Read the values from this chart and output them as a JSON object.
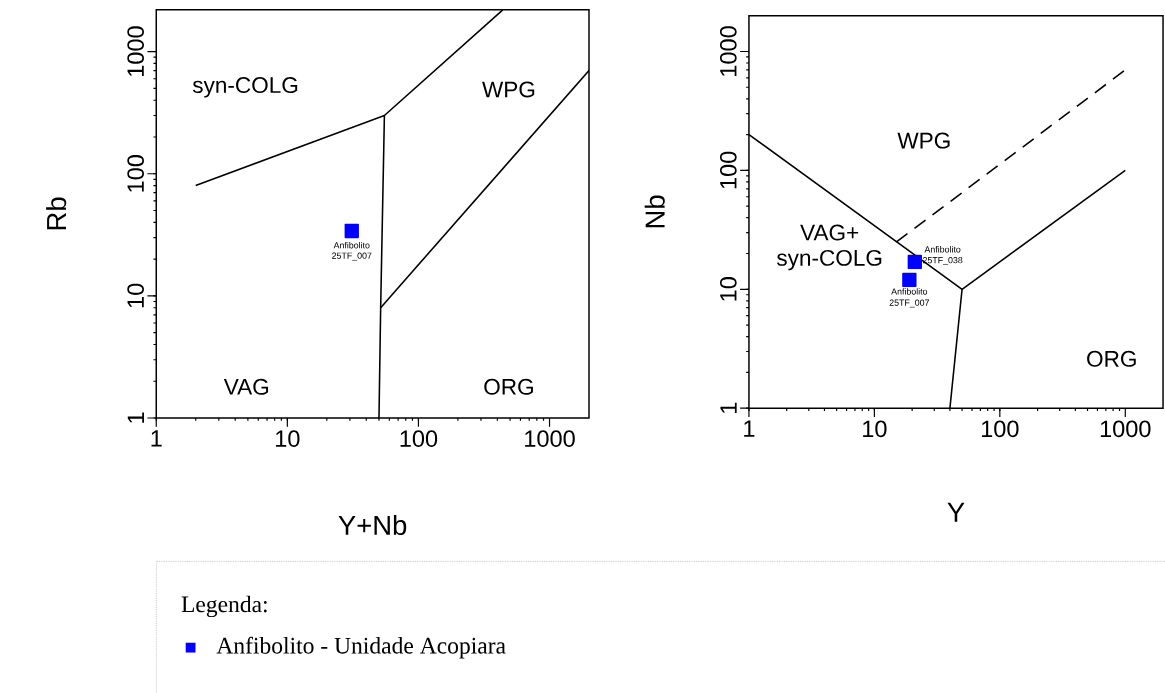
{
  "chart_data": [
    {
      "type": "scatter",
      "xlabel": "Y+Nb",
      "ylabel": "Rb",
      "log": "xy",
      "xlim": [
        1,
        2000
      ],
      "ylim": [
        1,
        2200
      ],
      "xticks": [
        1,
        10,
        100,
        1000
      ],
      "yticks": [
        1,
        10,
        100,
        1000
      ],
      "marker": "square",
      "legend": "bottom",
      "legend_title": "Legenda:",
      "series": [
        {
          "type": "line",
          "color": "#000000",
          "line_style": "solid",
          "marker": "none",
          "x": [
            2,
            55,
            440
          ],
          "values": [
            80,
            300,
            2200
          ]
        },
        {
          "type": "line",
          "color": "#000000",
          "line_style": "solid",
          "marker": "none",
          "x": [
            55,
            51.5,
            50
          ],
          "values": [
            300,
            8,
            1
          ]
        },
        {
          "type": "line",
          "color": "#000000",
          "line_style": "solid",
          "marker": "none",
          "x": [
            51.5,
            2000
          ],
          "values": [
            8,
            700
          ]
        },
        {
          "name": "Anfibolito - Unidade Acopiara",
          "color": "#0000ff",
          "x": [
            31
          ],
          "values": [
            34
          ]
        }
      ],
      "annotations": [
        "syn-COLG",
        "WPG",
        "VAG",
        "ORG",
        "Anfibolito",
        "25TF_007"
      ]
    },
    {
      "type": "scatter",
      "xlabel": "Y",
      "ylabel": "Nb",
      "log": "xy",
      "xlim": [
        1,
        2000
      ],
      "ylim": [
        1,
        2000
      ],
      "xticks": [
        1,
        10,
        100,
        1000
      ],
      "yticks": [
        1,
        10,
        100,
        1000
      ],
      "marker": "square",
      "series": [
        {
          "type": "line",
          "color": "#000000",
          "line_style": "solid",
          "marker": "none",
          "x": [
            1,
            50,
            40
          ],
          "values": [
            200,
            10,
            1
          ]
        },
        {
          "type": "line",
          "color": "#000000",
          "line_style": "solid",
          "marker": "none",
          "x": [
            50,
            1000
          ],
          "values": [
            10,
            100
          ]
        },
        {
          "type": "line",
          "color": "#000000",
          "line_style": "dashed",
          "marker": "none",
          "x": [
            15,
            1000
          ],
          "values": [
            25,
            700
          ]
        },
        {
          "color": "#0000ff",
          "x": [
            21,
            19
          ],
          "values": [
            17,
            12
          ]
        }
      ],
      "annotations": [
        "WPG",
        "VAG+",
        "syn-COLG",
        "ORG",
        "Anfibolito",
        "25TF_038",
        "Anfibolito",
        "25TF_007"
      ]
    }
  ]
}
